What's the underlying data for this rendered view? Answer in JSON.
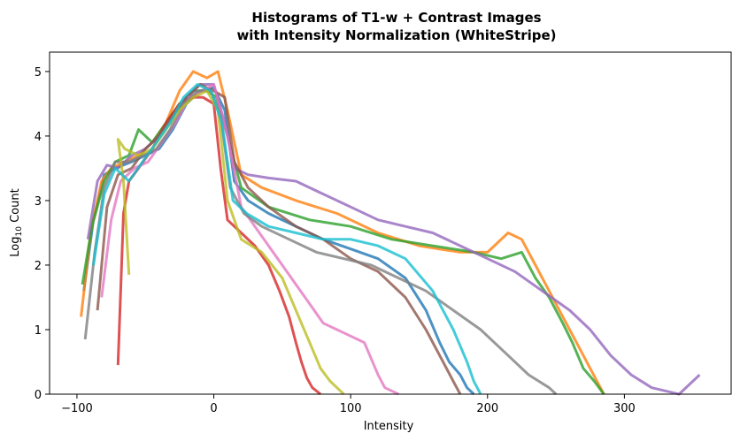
{
  "chart_data": {
    "type": "line",
    "title": "Histograms of T1-w + Contrast Images\nwith Intensity Normalization (WhiteStripe)",
    "xlabel": "Intensity",
    "ylabel_main": "Log",
    "ylabel_sub": "10",
    "ylabel_tail": " Count",
    "xlim": [
      -120,
      378
    ],
    "ylim": [
      0,
      5.3
    ],
    "xticks": [
      -100,
      0,
      100,
      200,
      300
    ],
    "yticks": [
      0,
      1,
      2,
      3,
      4,
      5
    ],
    "grid": false,
    "colors": [
      "#1f77b4",
      "#ff7f0e",
      "#2ca02c",
      "#d62728",
      "#9467bd",
      "#8c564b",
      "#e377c2",
      "#7f7f7f",
      "#bcbd22",
      "#17becf"
    ],
    "series": [
      {
        "x": [
          -95,
          -88,
          -80,
          -72,
          -60,
          -50,
          -40,
          -30,
          -20,
          -10,
          0,
          8,
          15,
          25,
          40,
          60,
          80,
          100,
          120,
          140,
          155,
          165,
          172,
          180,
          185,
          190
        ],
        "y": [
          1.6,
          2.7,
          3.4,
          3.5,
          3.6,
          3.7,
          3.8,
          4.1,
          4.5,
          4.7,
          4.75,
          4.4,
          3.3,
          3.0,
          2.8,
          2.6,
          2.4,
          2.25,
          2.1,
          1.8,
          1.3,
          0.8,
          0.5,
          0.3,
          0.1,
          0
        ]
      },
      {
        "x": [
          -97,
          -90,
          -82,
          -75,
          -65,
          -55,
          -45,
          -35,
          -25,
          -15,
          -5,
          3,
          10,
          20,
          35,
          60,
          90,
          120,
          150,
          180,
          200,
          215,
          225,
          235,
          245,
          255,
          265,
          275,
          285
        ],
        "y": [
          1.2,
          2.5,
          3.3,
          3.5,
          3.6,
          3.7,
          3.9,
          4.2,
          4.7,
          5.0,
          4.9,
          5.0,
          4.4,
          3.4,
          3.2,
          3.0,
          2.8,
          2.5,
          2.3,
          2.2,
          2.2,
          2.5,
          2.4,
          2.0,
          1.6,
          1.2,
          0.8,
          0.4,
          0
        ]
      },
      {
        "x": [
          -96,
          -89,
          -80,
          -72,
          -62,
          -55,
          -45,
          -35,
          -25,
          -15,
          -5,
          2,
          10,
          20,
          40,
          70,
          100,
          130,
          160,
          190,
          210,
          225,
          235,
          245,
          255,
          262,
          270,
          278,
          285
        ],
        "y": [
          1.7,
          2.6,
          3.3,
          3.6,
          3.7,
          4.1,
          3.9,
          4.2,
          4.5,
          4.7,
          4.7,
          4.6,
          4.0,
          3.2,
          2.9,
          2.7,
          2.6,
          2.4,
          2.3,
          2.2,
          2.1,
          2.2,
          1.8,
          1.5,
          1.1,
          0.8,
          0.4,
          0.2,
          0
        ]
      },
      {
        "x": [
          -70,
          -66,
          -62,
          -55,
          -45,
          -35,
          -25,
          -15,
          -8,
          0,
          5,
          10,
          20,
          30,
          40,
          48,
          55,
          60,
          64,
          68,
          72,
          78
        ],
        "y": [
          0.45,
          2.8,
          3.3,
          3.5,
          3.8,
          4.2,
          4.5,
          4.6,
          4.6,
          4.5,
          3.5,
          2.7,
          2.5,
          2.3,
          2.0,
          1.6,
          1.2,
          0.8,
          0.5,
          0.25,
          0.1,
          0
        ]
      },
      {
        "x": [
          -92,
          -85,
          -78,
          -70,
          -60,
          -50,
          -40,
          -30,
          -20,
          -10,
          0,
          8,
          15,
          25,
          40,
          60,
          80,
          100,
          120,
          140,
          160,
          180,
          200,
          220,
          240,
          260,
          275,
          290,
          305,
          320,
          340,
          355
        ],
        "y": [
          2.4,
          3.3,
          3.55,
          3.5,
          3.7,
          3.8,
          4.0,
          4.3,
          4.6,
          4.8,
          4.8,
          4.2,
          3.5,
          3.4,
          3.35,
          3.3,
          3.1,
          2.9,
          2.7,
          2.6,
          2.5,
          2.3,
          2.1,
          1.9,
          1.6,
          1.3,
          1.0,
          0.6,
          0.3,
          0.1,
          0,
          0.3
        ]
      },
      {
        "x": [
          -85,
          -78,
          -70,
          -60,
          -50,
          -40,
          -30,
          -20,
          -10,
          0,
          8,
          15,
          25,
          40,
          60,
          80,
          100,
          120,
          140,
          155,
          165,
          175,
          180
        ],
        "y": [
          1.3,
          2.9,
          3.4,
          3.5,
          3.8,
          4.0,
          4.3,
          4.6,
          4.8,
          4.7,
          4.6,
          3.6,
          3.2,
          2.9,
          2.6,
          2.4,
          2.1,
          1.9,
          1.5,
          1.0,
          0.6,
          0.2,
          0
        ]
      },
      {
        "x": [
          -82,
          -75,
          -68,
          -58,
          -48,
          -38,
          -28,
          -18,
          -8,
          0,
          10,
          20,
          30,
          40,
          50,
          60,
          70,
          80,
          90,
          100,
          110,
          120,
          125,
          130,
          135
        ],
        "y": [
          1.5,
          2.7,
          3.3,
          3.5,
          3.6,
          3.9,
          4.2,
          4.6,
          4.7,
          4.8,
          4.0,
          2.9,
          2.6,
          2.3,
          2.0,
          1.7,
          1.4,
          1.1,
          1.0,
          0.9,
          0.8,
          0.3,
          0.1,
          0.05,
          0
        ]
      },
      {
        "x": [
          -94,
          -87,
          -80,
          -72,
          -62,
          -52,
          -42,
          -32,
          -22,
          -12,
          -2,
          5,
          12,
          22,
          35,
          55,
          75,
          95,
          115,
          135,
          155,
          175,
          195,
          215,
          230,
          245,
          250
        ],
        "y": [
          0.85,
          2.2,
          3.2,
          3.6,
          3.6,
          3.7,
          3.8,
          4.1,
          4.5,
          4.7,
          4.7,
          4.3,
          3.2,
          2.8,
          2.6,
          2.4,
          2.2,
          2.1,
          2.0,
          1.8,
          1.6,
          1.3,
          1.0,
          0.6,
          0.3,
          0.1,
          0
        ]
      },
      {
        "x": [
          -62,
          -66,
          -70,
          -65,
          -55,
          -45,
          -35,
          -25,
          -15,
          -5,
          3,
          10,
          20,
          35,
          50,
          62,
          70,
          78,
          85,
          90,
          95
        ],
        "y": [
          1.85,
          3.3,
          3.95,
          3.8,
          3.7,
          3.8,
          4.1,
          4.4,
          4.6,
          4.7,
          4.4,
          3.0,
          2.4,
          2.2,
          1.8,
          1.2,
          0.8,
          0.4,
          0.2,
          0.1,
          0
        ]
      },
      {
        "x": [
          -88,
          -80,
          -72,
          -62,
          -52,
          -42,
          -32,
          -22,
          -12,
          -2,
          6,
          14,
          24,
          40,
          60,
          80,
          100,
          120,
          140,
          160,
          175,
          185,
          190,
          195
        ],
        "y": [
          2.0,
          3.1,
          3.5,
          3.3,
          3.6,
          3.9,
          4.2,
          4.6,
          4.8,
          4.7,
          4.2,
          3.0,
          2.8,
          2.6,
          2.5,
          2.4,
          2.4,
          2.3,
          2.1,
          1.6,
          1.0,
          0.5,
          0.2,
          0
        ]
      }
    ]
  }
}
